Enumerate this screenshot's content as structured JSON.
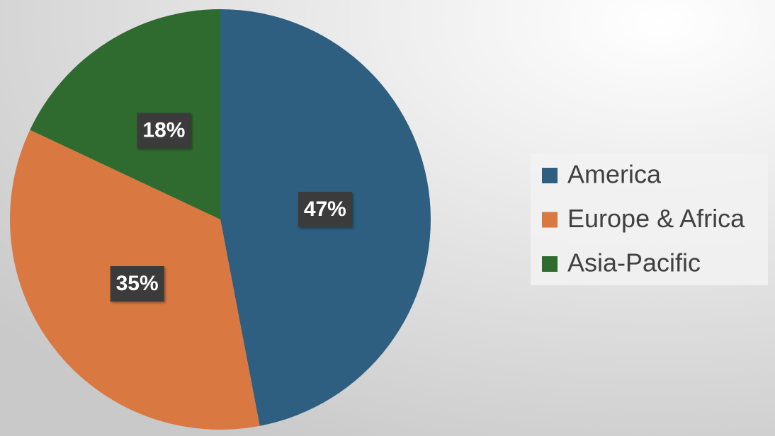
{
  "chart_data": {
    "type": "pie",
    "categories": [
      "America",
      "Europe & Africa",
      "Asia-Pacific"
    ],
    "values": [
      47,
      35,
      18
    ],
    "value_labels": [
      "47%",
      "35%",
      "18%"
    ],
    "colors": [
      "#2e5f80",
      "#d97841",
      "#2f6a2f"
    ],
    "legend": "right"
  }
}
